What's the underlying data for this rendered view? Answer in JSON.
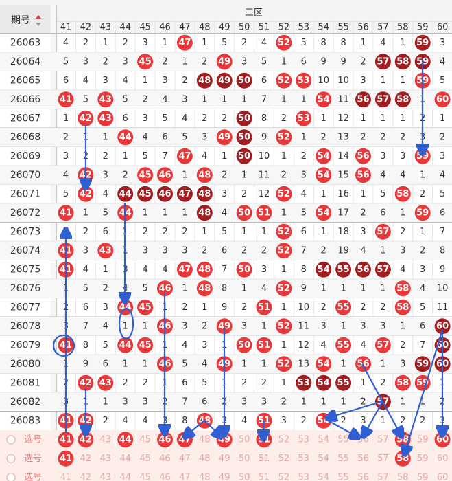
{
  "header": {
    "issue_label": "期号",
    "zone": "三区",
    "numbers": [
      "41",
      "42",
      "43",
      "44",
      "45",
      "46",
      "47",
      "48",
      "49",
      "50",
      "51",
      "52",
      "53",
      "54",
      "55",
      "56",
      "57",
      "58",
      "59",
      "60"
    ]
  },
  "rows": [
    {
      "issue": "26063",
      "cells": [
        "4",
        "2",
        "1",
        "2",
        "3",
        "1",
        {
          "ball": "47",
          "tone": "red"
        },
        "1",
        "5",
        "2",
        "4",
        {
          "ball": "52",
          "tone": "red"
        },
        "5",
        "8",
        "8",
        "1",
        "4",
        "1",
        {
          "ball": "59",
          "tone": "dark"
        },
        "3"
      ]
    },
    {
      "issue": "26064",
      "cells": [
        "5",
        "3",
        "2",
        "3",
        {
          "ball": "45",
          "tone": "red"
        },
        "2",
        "1",
        "2",
        {
          "ball": "49",
          "tone": "red"
        },
        "3",
        "5",
        "1",
        "6",
        "9",
        "9",
        "2",
        {
          "ball": "57",
          "tone": "dark"
        },
        {
          "ball": "58",
          "tone": "dark"
        },
        {
          "ball": "59",
          "tone": "dark"
        },
        "4"
      ]
    },
    {
      "issue": "26065",
      "cells": [
        "6",
        "4",
        "3",
        "4",
        "1",
        "3",
        "2",
        {
          "ball": "48",
          "tone": "dark"
        },
        {
          "ball": "49",
          "tone": "dark"
        },
        {
          "ball": "50",
          "tone": "dark"
        },
        "6",
        {
          "ball": "52",
          "tone": "red"
        },
        {
          "ball": "53",
          "tone": "red"
        },
        "10",
        "10",
        "3",
        "1",
        "1",
        {
          "ball": "59",
          "tone": "red"
        },
        "5"
      ]
    },
    {
      "issue": "26066",
      "cells": [
        {
          "ball": "41",
          "tone": "red"
        },
        "5",
        {
          "ball": "43",
          "tone": "red"
        },
        "5",
        "2",
        "4",
        "3",
        "1",
        "1",
        "1",
        "7",
        "1",
        "1",
        {
          "ball": "54",
          "tone": "red"
        },
        "11",
        {
          "ball": "56",
          "tone": "dark"
        },
        {
          "ball": "57",
          "tone": "dark"
        },
        {
          "ball": "58",
          "tone": "dark"
        },
        "1",
        {
          "ball": "60",
          "tone": "red"
        }
      ]
    },
    {
      "issue": "26067",
      "cells": [
        "1",
        {
          "ball": "42",
          "tone": "red"
        },
        {
          "ball": "43",
          "tone": "red"
        },
        "6",
        "3",
        "5",
        "4",
        "2",
        "2",
        {
          "ball": "50",
          "tone": "dark"
        },
        "8",
        "2",
        {
          "ball": "53",
          "tone": "red"
        },
        "1",
        "12",
        "1",
        "1",
        "1",
        "2",
        "1"
      ]
    },
    {
      "issue": "26068",
      "cells": [
        "2",
        "1",
        "1",
        {
          "ball": "44",
          "tone": "red"
        },
        "4",
        "6",
        "5",
        "3",
        {
          "ball": "49",
          "tone": "red"
        },
        {
          "ball": "50",
          "tone": "dark"
        },
        "9",
        {
          "ball": "52",
          "tone": "red"
        },
        "1",
        "2",
        "13",
        "2",
        "2",
        "2",
        "3",
        "2"
      ]
    },
    {
      "issue": "26069",
      "cells": [
        "3",
        "2",
        "2",
        "1",
        "5",
        "7",
        {
          "ball": "47",
          "tone": "red"
        },
        "4",
        "1",
        {
          "ball": "50",
          "tone": "dark"
        },
        "10",
        "1",
        "2",
        {
          "ball": "54",
          "tone": "red"
        },
        "14",
        {
          "ball": "56",
          "tone": "red"
        },
        "3",
        "3",
        {
          "ball": "59",
          "tone": "red"
        },
        "3"
      ]
    },
    {
      "issue": "26070",
      "cells": [
        "4",
        {
          "ball": "42",
          "tone": "red"
        },
        "3",
        "2",
        {
          "ball": "45",
          "tone": "red"
        },
        {
          "ball": "46",
          "tone": "red"
        },
        "1",
        {
          "ball": "48",
          "tone": "red"
        },
        "2",
        "1",
        "11",
        "2",
        "3",
        {
          "ball": "54",
          "tone": "red"
        },
        "15",
        {
          "ball": "56",
          "tone": "red"
        },
        "4",
        "4",
        "1",
        "4"
      ]
    },
    {
      "issue": "26071",
      "cells": [
        "5",
        {
          "ball": "42",
          "tone": "red"
        },
        "4",
        {
          "ball": "44",
          "tone": "dark"
        },
        {
          "ball": "45",
          "tone": "dark"
        },
        {
          "ball": "46",
          "tone": "dark"
        },
        {
          "ball": "47",
          "tone": "dark"
        },
        {
          "ball": "48",
          "tone": "dark"
        },
        "3",
        "2",
        "12",
        {
          "ball": "52",
          "tone": "red"
        },
        "4",
        "1",
        "16",
        "1",
        "5",
        {
          "ball": "58",
          "tone": "red"
        },
        "2",
        "5"
      ]
    },
    {
      "issue": "26072",
      "cells": [
        {
          "ball": "41",
          "tone": "red"
        },
        "1",
        "5",
        {
          "ball": "44",
          "tone": "red"
        },
        "1",
        "1",
        "1",
        {
          "ball": "48",
          "tone": "dark"
        },
        "4",
        {
          "ball": "50",
          "tone": "red"
        },
        {
          "ball": "51",
          "tone": "red"
        },
        "1",
        "5",
        {
          "ball": "54",
          "tone": "red"
        },
        "17",
        "2",
        "6",
        "1",
        {
          "ball": "59",
          "tone": "red"
        },
        "6"
      ]
    },
    {
      "issue": "26073",
      "cells": [
        "1",
        "2",
        "6",
        "1",
        "2",
        "2",
        "2",
        "1",
        "5",
        "1",
        "1",
        {
          "ball": "52",
          "tone": "red"
        },
        "6",
        "1",
        "18",
        "3",
        {
          "ball": "57",
          "tone": "red"
        },
        "2",
        "1",
        "7"
      ]
    },
    {
      "issue": "26074",
      "cells": [
        {
          "ball": "41",
          "tone": "red"
        },
        "3",
        {
          "ball": "43",
          "tone": "red"
        },
        "1",
        "3",
        "3",
        "3",
        "2",
        "6",
        "2",
        "2",
        {
          "ball": "52",
          "tone": "red"
        },
        "7",
        "2",
        "19",
        "4",
        "1",
        "3",
        "2",
        "8"
      ]
    },
    {
      "issue": "26075",
      "cells": [
        {
          "ball": "41",
          "tone": "red"
        },
        "4",
        "1",
        "3",
        "4",
        "4",
        {
          "ball": "47",
          "tone": "red"
        },
        {
          "ball": "48",
          "tone": "red"
        },
        "7",
        {
          "ball": "50",
          "tone": "red"
        },
        "3",
        "1",
        "8",
        {
          "ball": "54",
          "tone": "dark"
        },
        {
          "ball": "55",
          "tone": "dark"
        },
        {
          "ball": "56",
          "tone": "dark"
        },
        {
          "ball": "57",
          "tone": "dark"
        },
        "4",
        "3",
        "9"
      ]
    },
    {
      "issue": "26076",
      "cells": [
        "1",
        "5",
        "2",
        "4",
        "5",
        {
          "ball": "46",
          "tone": "red"
        },
        "1",
        {
          "ball": "48",
          "tone": "red"
        },
        "8",
        "1",
        "4",
        {
          "ball": "52",
          "tone": "red"
        },
        "9",
        "1",
        "1",
        "1",
        "1",
        {
          "ball": "58",
          "tone": "red"
        },
        "4",
        "10"
      ]
    },
    {
      "issue": "26077",
      "cells": [
        "2",
        "6",
        "3",
        {
          "ball": "44",
          "tone": "red"
        },
        {
          "ball": "45",
          "tone": "red"
        },
        "1",
        "2",
        "1",
        "9",
        "2",
        {
          "ball": "51",
          "tone": "red"
        },
        "1",
        "10",
        "2",
        {
          "ball": "55",
          "tone": "red"
        },
        "2",
        "2",
        {
          "ball": "58",
          "tone": "red"
        },
        "5",
        "11"
      ]
    },
    {
      "issue": "26078",
      "cells": [
        "3",
        "7",
        "4",
        "1",
        "1",
        {
          "ball": "46",
          "tone": "red"
        },
        "3",
        "2",
        {
          "ball": "49",
          "tone": "red"
        },
        "3",
        "1",
        {
          "ball": "52",
          "tone": "red"
        },
        "11",
        "3",
        "1",
        "3",
        "3",
        "1",
        "6",
        {
          "ball": "60",
          "tone": "dark"
        }
      ]
    },
    {
      "issue": "26079",
      "cells": [
        {
          "ball": "41",
          "tone": "red"
        },
        "8",
        "5",
        {
          "ball": "44",
          "tone": "red"
        },
        {
          "ball": "45",
          "tone": "red"
        },
        "1",
        "4",
        "3",
        "1",
        {
          "ball": "50",
          "tone": "red"
        },
        {
          "ball": "51",
          "tone": "red"
        },
        "1",
        "12",
        "4",
        {
          "ball": "55",
          "tone": "red"
        },
        "4",
        {
          "ball": "57",
          "tone": "red"
        },
        "2",
        "7",
        {
          "ball": "60",
          "tone": "dark"
        }
      ]
    },
    {
      "issue": "26080",
      "cells": [
        "1",
        "9",
        "6",
        "1",
        "1",
        {
          "ball": "46",
          "tone": "red"
        },
        "5",
        "4",
        {
          "ball": "49",
          "tone": "red"
        },
        "1",
        "1",
        {
          "ball": "52",
          "tone": "red"
        },
        "13",
        {
          "ball": "54",
          "tone": "red"
        },
        "1",
        {
          "ball": "56",
          "tone": "red"
        },
        "1",
        "3",
        {
          "ball": "59",
          "tone": "dark"
        },
        {
          "ball": "60",
          "tone": "dark"
        }
      ]
    },
    {
      "issue": "26081",
      "cells": [
        "2",
        {
          "ball": "42",
          "tone": "red"
        },
        {
          "ball": "43",
          "tone": "red"
        },
        "2",
        "2",
        "1",
        "6",
        "5",
        "1",
        "2",
        "2",
        "1",
        {
          "ball": "53",
          "tone": "dark"
        },
        {
          "ball": "54",
          "tone": "dark"
        },
        {
          "ball": "55",
          "tone": "dark"
        },
        "1",
        "2",
        {
          "ball": "58",
          "tone": "red"
        },
        {
          "ball": "59",
          "tone": "red"
        },
        "1"
      ]
    },
    {
      "issue": "26082",
      "cells": [
        "3",
        "1",
        "1",
        "3",
        "3",
        "2",
        "7",
        "6",
        "2",
        "3",
        "3",
        "2",
        "1",
        "1",
        "1",
        "2",
        {
          "ball": "57",
          "tone": "dark"
        },
        "1",
        "1",
        "2"
      ]
    },
    {
      "issue": "26083",
      "cells": [
        {
          "ball": "41",
          "tone": "red"
        },
        {
          "ball": "42",
          "tone": "red"
        },
        "2",
        "4",
        "4",
        "3",
        "8",
        {
          "ball": "48",
          "tone": "red"
        },
        "3",
        "4",
        {
          "ball": "51",
          "tone": "red"
        },
        "3",
        "2",
        {
          "ball": "54",
          "tone": "red"
        },
        "2",
        "3",
        "1",
        "2",
        "2",
        "3"
      ]
    }
  ],
  "pick": {
    "label": "选号",
    "rows": [
      {
        "on": [
          true,
          true,
          false,
          true,
          false,
          true,
          true,
          false,
          true,
          false,
          true,
          false,
          false,
          false,
          false,
          false,
          false,
          true,
          false,
          true
        ]
      },
      {
        "on": [
          true,
          false,
          false,
          false,
          false,
          false,
          false,
          false,
          false,
          false,
          false,
          false,
          false,
          false,
          false,
          false,
          false,
          true,
          false,
          false
        ]
      },
      {
        "on": [
          false,
          false,
          false,
          false,
          false,
          false,
          false,
          false,
          false,
          false,
          false,
          false,
          false,
          false,
          false,
          false,
          false,
          false,
          false,
          false
        ]
      }
    ]
  }
}
